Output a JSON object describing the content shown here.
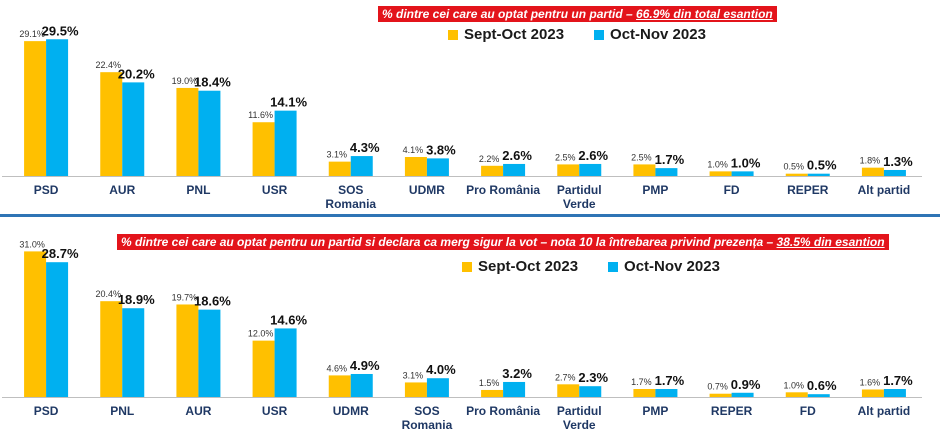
{
  "colors": {
    "series_a": "#ffc000",
    "series_b": "#00b0f0",
    "axis": "#1f3864",
    "banner": "#e3141b"
  },
  "chart_data": [
    {
      "type": "bar",
      "banner": {
        "prefix": "% dintre cei care au optat  pentru un partid – ",
        "highlight": "66.9% din total esantion"
      },
      "categories": [
        "PSD",
        "AUR",
        "PNL",
        "USR",
        "SOS Romania",
        "UDMR",
        "Pro România",
        "Partidul Verde",
        "PMP",
        "FD",
        "REPER",
        "Alt partid"
      ],
      "series": [
        {
          "name": "Sept-Oct 2023",
          "values": [
            29.1,
            22.4,
            19.0,
            11.6,
            3.1,
            4.1,
            2.2,
            2.5,
            2.5,
            1.0,
            0.5,
            1.8
          ],
          "labels": [
            "29.1%",
            "22.4%",
            "19.0%",
            "11.6%",
            "3.1%",
            "4.1%",
            "2.2%",
            "2.5%",
            "2.5%",
            "1.0%",
            "0.5%",
            "1.8%"
          ]
        },
        {
          "name": "Oct-Nov 2023",
          "values": [
            29.5,
            20.2,
            18.4,
            14.1,
            4.3,
            3.8,
            2.6,
            2.6,
            1.7,
            1.0,
            0.5,
            1.3
          ],
          "labels": [
            "29.5%",
            "20.2%",
            "18.4%",
            "14.1%",
            "4.3%",
            "3.8%",
            "2.6%",
            "2.6%",
            "1.7%",
            "1.0%",
            "0.5%",
            "1.3%"
          ]
        }
      ],
      "ylim": [
        0,
        31.5
      ]
    },
    {
      "type": "bar",
      "banner": {
        "prefix": "% dintre cei care au optat pentru un partid si declara ca merg sigur la vot – nota 10 la întrebarea privind prezența – ",
        "highlight": "38.5% din esantion"
      },
      "categories": [
        "PSD",
        "PNL",
        "AUR",
        "USR",
        "UDMR",
        "SOS Romania",
        "Pro România",
        "Partidul Verde",
        "PMP",
        "REPER",
        "FD",
        "Alt partid"
      ],
      "series": [
        {
          "name": "Sept-Oct 2023",
          "values": [
            31.0,
            20.4,
            19.7,
            12.0,
            4.6,
            3.1,
            1.5,
            2.7,
            1.7,
            0.7,
            1.0,
            1.6
          ],
          "labels": [
            "31.0%",
            "20.4%",
            "19.7%",
            "12.0%",
            "4.6%",
            "3.1%",
            "1.5%",
            "2.7%",
            "1.7%",
            "0.7%",
            "1.0%",
            "1.6%"
          ]
        },
        {
          "name": "Oct-Nov 2023",
          "values": [
            28.7,
            18.9,
            18.6,
            14.6,
            4.9,
            4.0,
            3.2,
            2.3,
            1.7,
            0.9,
            0.6,
            1.7
          ],
          "labels": [
            "28.7%",
            "18.9%",
            "18.6%",
            "14.6%",
            "4.9%",
            "4.0%",
            "3.2%",
            "2.3%",
            "1.7%",
            "0.9%",
            "0.6%",
            "1.7%"
          ]
        }
      ],
      "ylim": [
        0,
        33
      ]
    }
  ]
}
